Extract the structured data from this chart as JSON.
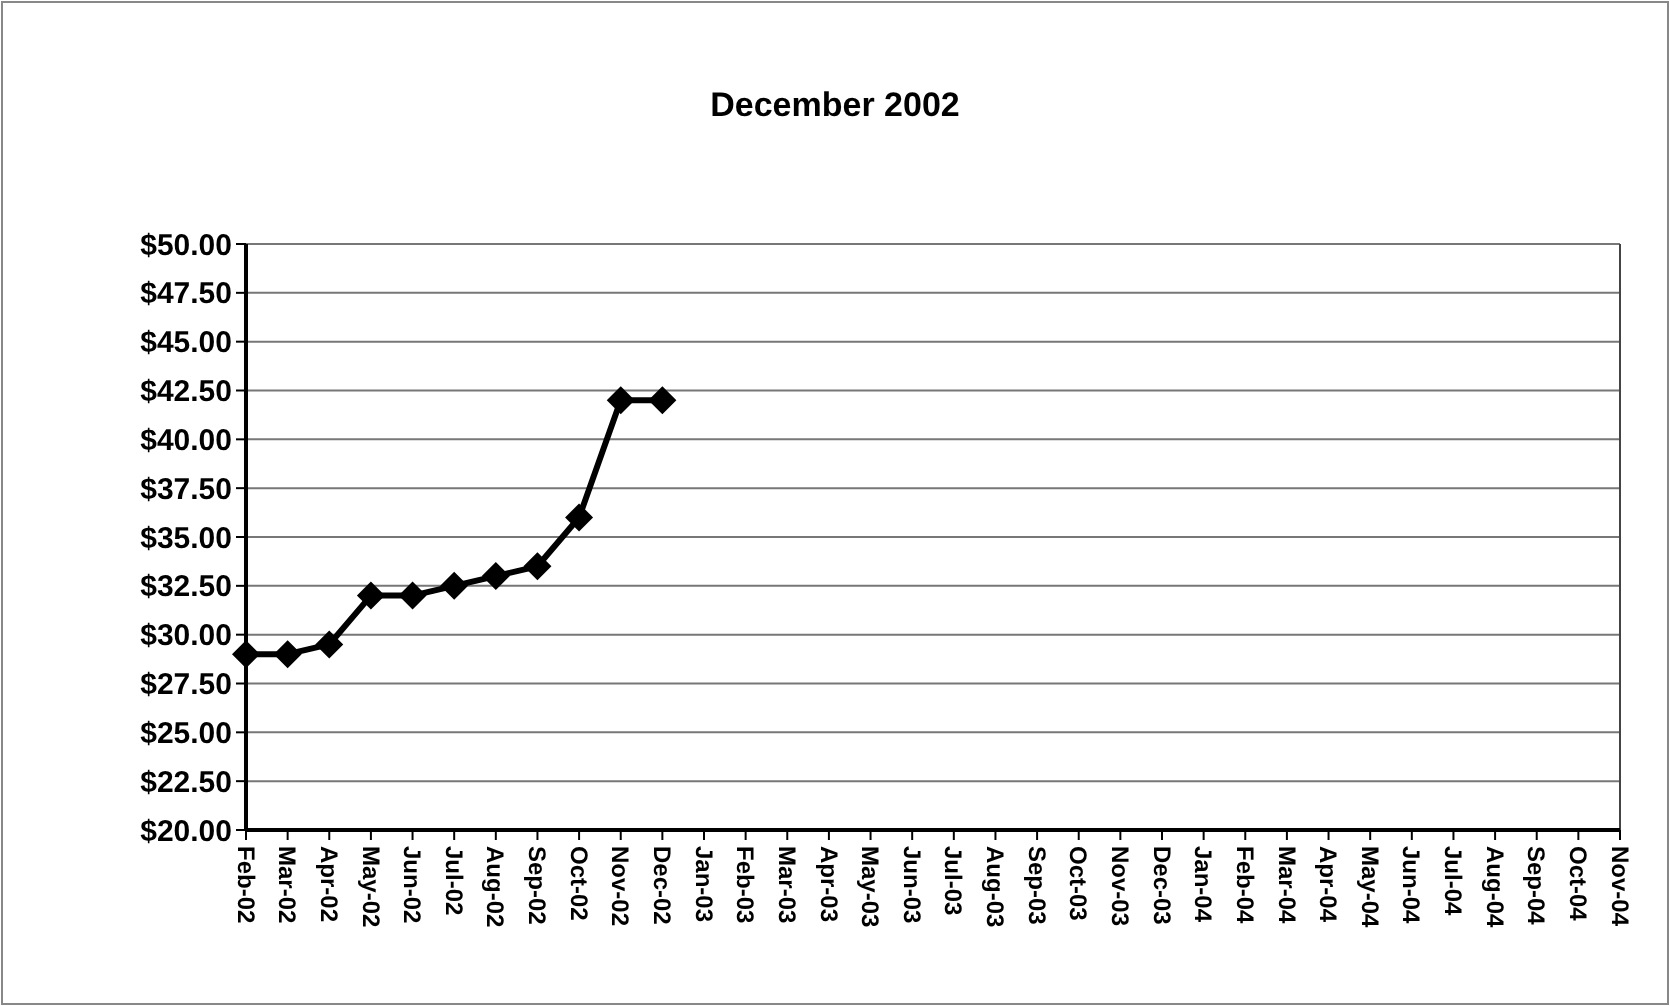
{
  "chart_data": {
    "type": "line",
    "title": "December 2002",
    "categories": [
      "Feb-02",
      "Mar-02",
      "Apr-02",
      "May-02",
      "Jun-02",
      "Jul-02",
      "Aug-02",
      "Sep-02",
      "Oct-02",
      "Nov-02",
      "Dec-02",
      "Jan-03",
      "Feb-03",
      "Mar-03",
      "Apr-03",
      "May-03",
      "Jun-03",
      "Jul-03",
      "Aug-03",
      "Sep-03",
      "Oct-03",
      "Nov-03",
      "Dec-03",
      "Jan-04",
      "Feb-04",
      "Mar-04",
      "Apr-04",
      "May-04",
      "Jun-04",
      "Jul-04",
      "Aug-04",
      "Sep-04",
      "Oct-04",
      "Nov-04"
    ],
    "series": [
      {
        "color": "#000000",
        "values": [
          29,
          29,
          29.5,
          32,
          32,
          32.5,
          33,
          33.5,
          36,
          42,
          42,
          null,
          null,
          null,
          null,
          null,
          null,
          null,
          null,
          null,
          null,
          null,
          null,
          null,
          null,
          null,
          null,
          null,
          null,
          null,
          null,
          null,
          null,
          null
        ]
      }
    ],
    "ylim": [
      20,
      50
    ],
    "yticks": [
      {
        "value": 20,
        "label": "$20.00"
      },
      {
        "value": 22.5,
        "label": "$22.50"
      },
      {
        "value": 25,
        "label": "$25.00"
      },
      {
        "value": 27.5,
        "label": "$27.50"
      },
      {
        "value": 30,
        "label": "$30.00"
      },
      {
        "value": 32.5,
        "label": "$32.50"
      },
      {
        "value": 35,
        "label": "$35.00"
      },
      {
        "value": 37.5,
        "label": "$37.50"
      },
      {
        "value": 40,
        "label": "$40.00"
      },
      {
        "value": 42.5,
        "label": "$42.50"
      },
      {
        "value": 45,
        "label": "$45.00"
      },
      {
        "value": 47.5,
        "label": "$47.50"
      },
      {
        "value": 50,
        "label": "$50.00"
      }
    ],
    "grid": "y",
    "marker": "diamond",
    "line_style": "solid"
  }
}
